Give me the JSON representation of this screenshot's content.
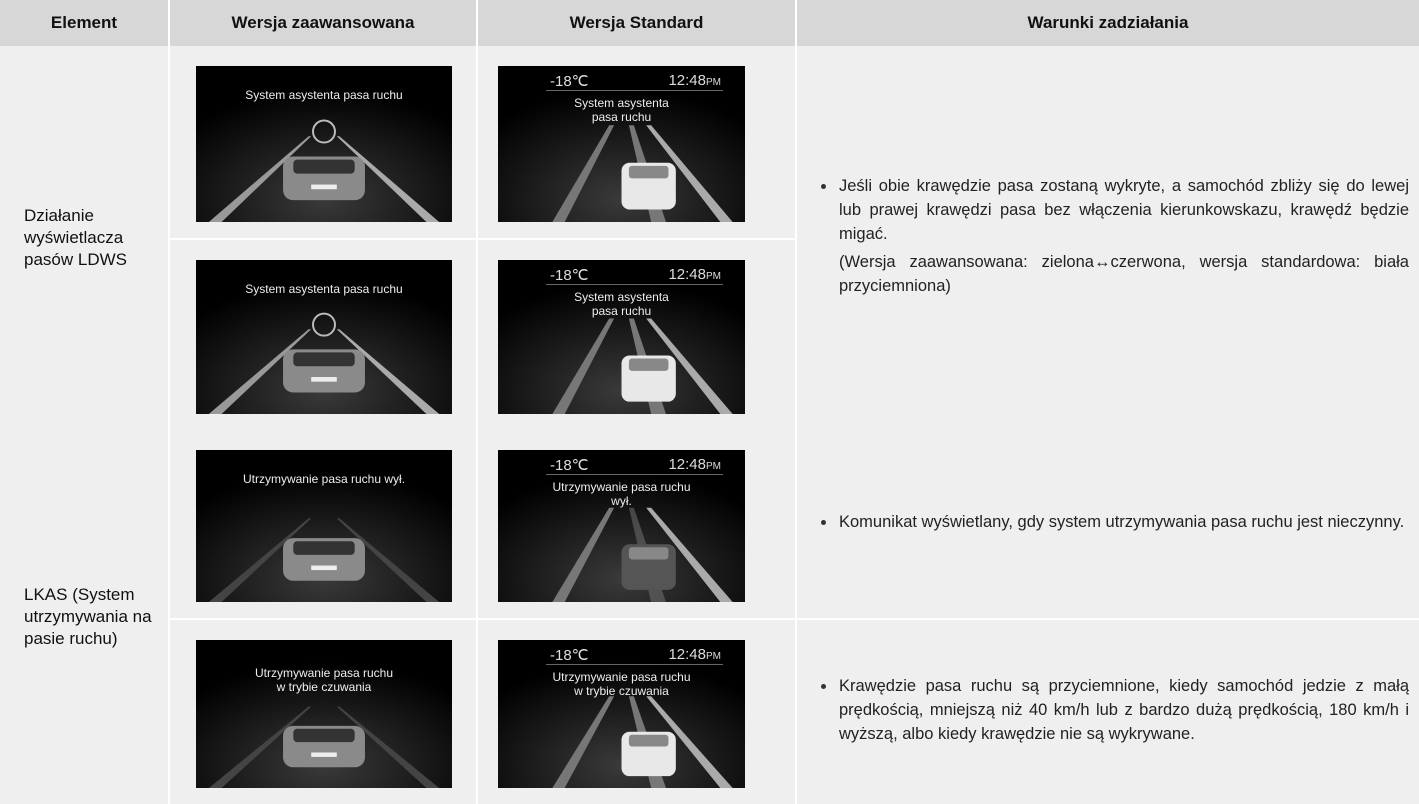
{
  "table": {
    "header": [
      "Element",
      "Wersja zaawansowana",
      "Wersja Standard",
      "Warunki zadziałania"
    ],
    "groups": [
      {
        "element": "Działanie wyświetlacza pasów LDWS",
        "rows": [
          {
            "advanced": {
              "message": [
                "System asystenta pasa ruchu"
              ]
            },
            "standard": {
              "temperature": "-18℃",
              "time": "12:48",
              "period": "PM",
              "message": [
                "System asystenta",
                "pasa ruchu"
              ]
            }
          },
          {
            "advanced": {
              "message": [
                "System asystenta pasa ruchu"
              ]
            },
            "standard": {
              "temperature": "-18℃",
              "time": "12:48",
              "period": "PM",
              "message": [
                "System asystenta",
                "pasa ruchu"
              ]
            }
          }
        ],
        "conditions": [
          "Jeśli obie krawędzie pasa zostaną wykryte, a samochód zbliży się do lewej lub prawej krawędzi pasa bez włączenia kierunkowskazu, krawędź będzie migać.",
          "(Wersja zaawansowana: zielona↔czerwona, wersja standardowa: biała przyciemniona)"
        ]
      },
      {
        "element": "LKAS (System utrzymywania na pasie ruchu)",
        "rows": [
          {
            "advanced": {
              "message": [
                "Utrzymywanie pasa ruchu wył."
              ]
            },
            "standard": {
              "temperature": "-18℃",
              "time": "12:48",
              "period": "PM",
              "message": [
                "Utrzymywanie pasa ruchu",
                "wył."
              ]
            },
            "conditions": [
              "Komunikat wyświetlany, gdy system utrzymywania pasa ruchu jest nieczynny."
            ]
          },
          {
            "advanced": {
              "message": [
                "Utrzymywanie pasa ruchu",
                "w trybie czuwania"
              ]
            },
            "standard": {
              "temperature": "-18℃",
              "time": "12:48",
              "period": "PM",
              "message": [
                "Utrzymywanie pasa ruchu",
                "w trybie czuwania"
              ]
            },
            "conditions": [
              "Krawędzie pasa ruchu są przyciemnione, kiedy samochód jedzie z małą prędkością, mniejszą niż 40 km/h lub z bardzo dużą prędkością, 180 km/h i wyższą, albo kiedy krawędzie nie są wykrywane."
            ]
          }
        ]
      }
    ]
  }
}
